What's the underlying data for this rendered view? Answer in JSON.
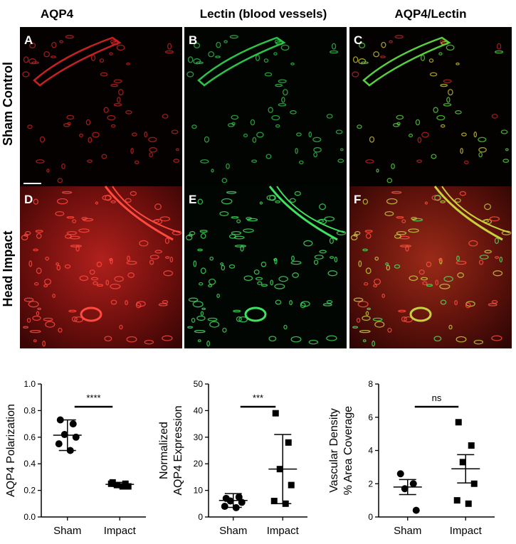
{
  "column_headers": [
    "AQP4",
    "Lectin (blood vessels)",
    "AQP4/Lectin"
  ],
  "row_labels": [
    "Sham Control",
    "Head Impact"
  ],
  "panel_letters": [
    "A",
    "B",
    "C",
    "D",
    "E",
    "F"
  ],
  "chart_data": [
    {
      "type": "dot",
      "ylabel": [
        "AQP4 Polarization"
      ],
      "categories": [
        "Sham",
        "Impact"
      ],
      "points": [
        [
          0.73,
          0.7,
          0.62,
          0.6,
          0.55,
          0.5
        ],
        [
          0.26,
          0.25,
          0.24,
          0.23,
          0.25,
          0.23
        ]
      ],
      "mean": [
        0.615,
        0.245
      ],
      "error": [
        0.115,
        0.015
      ],
      "markers": [
        "circle",
        "square"
      ],
      "color": "#000000",
      "ylim": [
        0,
        1.0
      ],
      "yticks": [
        {
          "value": 0,
          "label": "0.0"
        },
        0.2,
        0.4,
        0.6,
        0.8,
        {
          "value": 1.0,
          "label": "1.0"
        }
      ],
      "annotation": "****"
    },
    {
      "type": "dot",
      "ylabel": [
        "Normalized",
        "AQP4 Expression"
      ],
      "categories": [
        "Sham",
        "Impact"
      ],
      "points": [
        [
          7,
          7.5,
          6,
          5.5,
          4,
          3.5
        ],
        [
          39,
          28,
          18,
          12,
          6,
          5
        ]
      ],
      "mean": [
        6.2,
        18
      ],
      "error": [
        2.6,
        13
      ],
      "markers": [
        "circle",
        "square"
      ],
      "color": "#000000",
      "ylim": [
        0,
        50
      ],
      "yticks": [
        0,
        10,
        20,
        30,
        40,
        50
      ],
      "annotation": "***"
    },
    {
      "type": "dot",
      "ylabel": [
        "Vascular Density",
        "% Area Coverage"
      ],
      "categories": [
        "Sham",
        "Impact"
      ],
      "points": [
        [
          2.6,
          2.0,
          1.7,
          0.4
        ],
        [
          5.7,
          4.3,
          3.3,
          2.0,
          1.0,
          0.8
        ]
      ],
      "mean": [
        1.8,
        2.9
      ],
      "error": [
        0.45,
        0.85
      ],
      "markers": [
        "circle",
        "square"
      ],
      "color": "#000000",
      "ylim": [
        0,
        8
      ],
      "yticks": [
        0,
        2,
        4,
        6,
        8
      ],
      "annotation": "ns"
    }
  ]
}
